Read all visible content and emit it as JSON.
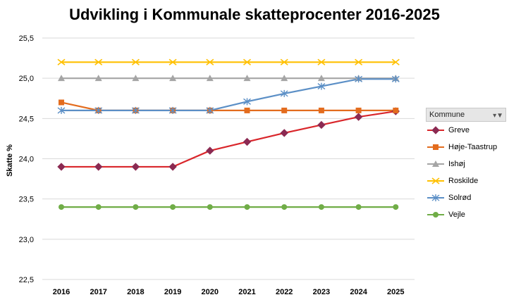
{
  "chart_data": {
    "type": "line",
    "title": "Udvikling i Kommunale skatteprocenter 2016-2025",
    "xlabel": "",
    "ylabel": "Skatte %",
    "categories": [
      "2016",
      "2017",
      "2018",
      "2019",
      "2020",
      "2021",
      "2022",
      "2023",
      "2024",
      "2025"
    ],
    "y_ticks": [
      "22,5",
      "23,0",
      "23,5",
      "24,0",
      "24,5",
      "25,0",
      "25,5"
    ],
    "ylim": [
      22.5,
      25.5
    ],
    "grid": true,
    "legend_title": "Kommune",
    "legend_position": "right",
    "series": [
      {
        "name": "Greve",
        "color": "#d9262b",
        "marker": "diamond",
        "marker_color": "#8b2a52",
        "values": [
          23.9,
          23.9,
          23.9,
          23.9,
          24.1,
          24.21,
          24.32,
          24.42,
          24.52,
          24.59
        ]
      },
      {
        "name": "Høje-Taastrup",
        "color": "#e36c1e",
        "marker": "square",
        "marker_color": "#e36c1e",
        "values": [
          24.7,
          24.6,
          24.6,
          24.6,
          24.6,
          24.6,
          24.6,
          24.6,
          24.6,
          24.6
        ]
      },
      {
        "name": "Ishøj",
        "color": "#a5a5a5",
        "marker": "triangle",
        "marker_color": "#a5a5a5",
        "values": [
          25.0,
          25.0,
          25.0,
          25.0,
          25.0,
          25.0,
          25.0,
          25.0,
          25.0,
          25.0
        ]
      },
      {
        "name": "Roskilde",
        "color": "#ffc000",
        "marker": "x",
        "marker_color": "#ffc000",
        "values": [
          25.2,
          25.2,
          25.2,
          25.2,
          25.2,
          25.2,
          25.2,
          25.2,
          25.2,
          25.2
        ]
      },
      {
        "name": "Solrød",
        "color": "#5b8fc6",
        "marker": "star",
        "marker_color": "#5b8fc6",
        "values": [
          24.6,
          24.6,
          24.6,
          24.6,
          24.6,
          24.71,
          24.81,
          24.9,
          24.99,
          24.99
        ]
      },
      {
        "name": "Vejle",
        "color": "#70ad47",
        "marker": "circle",
        "marker_color": "#70ad47",
        "values": [
          23.4,
          23.4,
          23.4,
          23.4,
          23.4,
          23.4,
          23.4,
          23.4,
          23.4,
          23.4
        ]
      }
    ]
  }
}
